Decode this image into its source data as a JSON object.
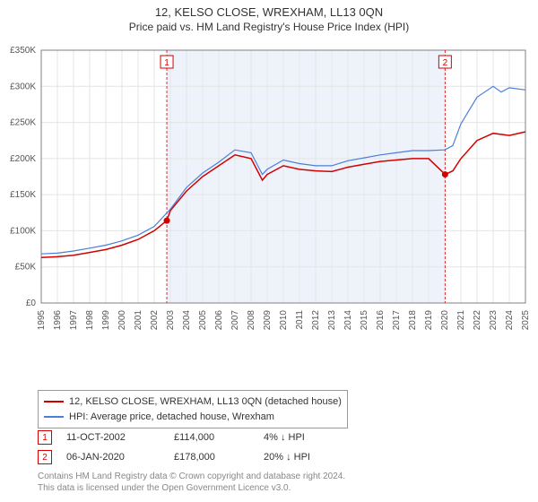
{
  "header": {
    "title": "12, KELSO CLOSE, WREXHAM, LL13 0QN",
    "subtitle": "Price paid vs. HM Land Registry's House Price Index (HPI)"
  },
  "chart": {
    "type": "line",
    "background_color": "#ffffff",
    "grid_color": "#e4e4e4",
    "axis_color": "#808080",
    "axis_font_size": 10,
    "axis_font_color": "#555555",
    "ylim": [
      0,
      350000
    ],
    "ytick_step": 50000,
    "yticks": [
      "£0",
      "£50K",
      "£100K",
      "£150K",
      "£200K",
      "£250K",
      "£300K",
      "£350K"
    ],
    "xlim": [
      1995,
      2025
    ],
    "xticks": [
      1995,
      1996,
      1997,
      1998,
      1999,
      2000,
      2001,
      2002,
      2003,
      2004,
      2005,
      2006,
      2007,
      2008,
      2009,
      2010,
      2011,
      2012,
      2013,
      2014,
      2015,
      2016,
      2017,
      2018,
      2019,
      2020,
      2021,
      2022,
      2023,
      2024,
      2025
    ],
    "shaded_region": {
      "x_from": 2002.78,
      "x_to": 2020.02,
      "fill": "#eef3fb"
    },
    "series": [
      {
        "name": "property",
        "label": "12, KELSO CLOSE, WREXHAM, LL13 0QN (detached house)",
        "color": "#d40000",
        "line_width": 1.5,
        "data": [
          [
            1995,
            63000
          ],
          [
            1996,
            64000
          ],
          [
            1997,
            66000
          ],
          [
            1998,
            70000
          ],
          [
            1999,
            74000
          ],
          [
            2000,
            80000
          ],
          [
            2001,
            88000
          ],
          [
            2002,
            100000
          ],
          [
            2002.78,
            114000
          ],
          [
            2003,
            128000
          ],
          [
            2004,
            155000
          ],
          [
            2005,
            175000
          ],
          [
            2006,
            190000
          ],
          [
            2007,
            205000
          ],
          [
            2008,
            200000
          ],
          [
            2008.7,
            170000
          ],
          [
            2009,
            178000
          ],
          [
            2010,
            190000
          ],
          [
            2011,
            185000
          ],
          [
            2012,
            183000
          ],
          [
            2013,
            182000
          ],
          [
            2014,
            188000
          ],
          [
            2015,
            192000
          ],
          [
            2016,
            196000
          ],
          [
            2017,
            198000
          ],
          [
            2018,
            200000
          ],
          [
            2019,
            200000
          ],
          [
            2020.02,
            178000
          ],
          [
            2020.5,
            183000
          ],
          [
            2021,
            200000
          ],
          [
            2022,
            225000
          ],
          [
            2023,
            235000
          ],
          [
            2024,
            232000
          ],
          [
            2025,
            237000
          ]
        ]
      },
      {
        "name": "hpi",
        "label": "HPI: Average price, detached house, Wrexham",
        "color": "#4a7fd6",
        "line_width": 1.2,
        "data": [
          [
            1995,
            68000
          ],
          [
            1996,
            69000
          ],
          [
            1997,
            72000
          ],
          [
            1998,
            76000
          ],
          [
            1999,
            80000
          ],
          [
            2000,
            86000
          ],
          [
            2001,
            94000
          ],
          [
            2002,
            106000
          ],
          [
            2003,
            130000
          ],
          [
            2004,
            160000
          ],
          [
            2005,
            180000
          ],
          [
            2006,
            195000
          ],
          [
            2007,
            212000
          ],
          [
            2008,
            208000
          ],
          [
            2008.7,
            178000
          ],
          [
            2009,
            185000
          ],
          [
            2010,
            198000
          ],
          [
            2011,
            193000
          ],
          [
            2012,
            190000
          ],
          [
            2013,
            190000
          ],
          [
            2014,
            197000
          ],
          [
            2015,
            201000
          ],
          [
            2016,
            205000
          ],
          [
            2017,
            208000
          ],
          [
            2018,
            211000
          ],
          [
            2019,
            211000
          ],
          [
            2020,
            212000
          ],
          [
            2020.5,
            218000
          ],
          [
            2021,
            248000
          ],
          [
            2022,
            285000
          ],
          [
            2023,
            300000
          ],
          [
            2023.5,
            292000
          ],
          [
            2024,
            298000
          ],
          [
            2025,
            295000
          ]
        ]
      }
    ],
    "markers": [
      {
        "id": "1",
        "x": 2002.78,
        "y": 114000,
        "line_color": "#d40000",
        "box_border": "#d40000",
        "box_text": "#d40000",
        "label_y": 0.05
      },
      {
        "id": "2",
        "x": 2020.02,
        "y": 178000,
        "line_color": "#d40000",
        "box_border": "#d40000",
        "box_text": "#d40000",
        "label_y": 0.05
      }
    ]
  },
  "legend": {
    "rows": [
      {
        "color": "#d40000",
        "label": "12, KELSO CLOSE, WREXHAM, LL13 0QN (detached house)"
      },
      {
        "color": "#4a7fd6",
        "label": "HPI: Average price, detached house, Wrexham"
      }
    ]
  },
  "sales": [
    {
      "marker": "1",
      "marker_color": "#d40000",
      "date": "11-OCT-2002",
      "price": "£114,000",
      "hpi_delta": "4% ↓ HPI"
    },
    {
      "marker": "2",
      "marker_color": "#d40000",
      "date": "06-JAN-2020",
      "price": "£178,000",
      "hpi_delta": "20% ↓ HPI"
    }
  ],
  "footer": {
    "line1": "Contains HM Land Registry data © Crown copyright and database right 2024.",
    "line2": "This data is licensed under the Open Government Licence v3.0."
  }
}
